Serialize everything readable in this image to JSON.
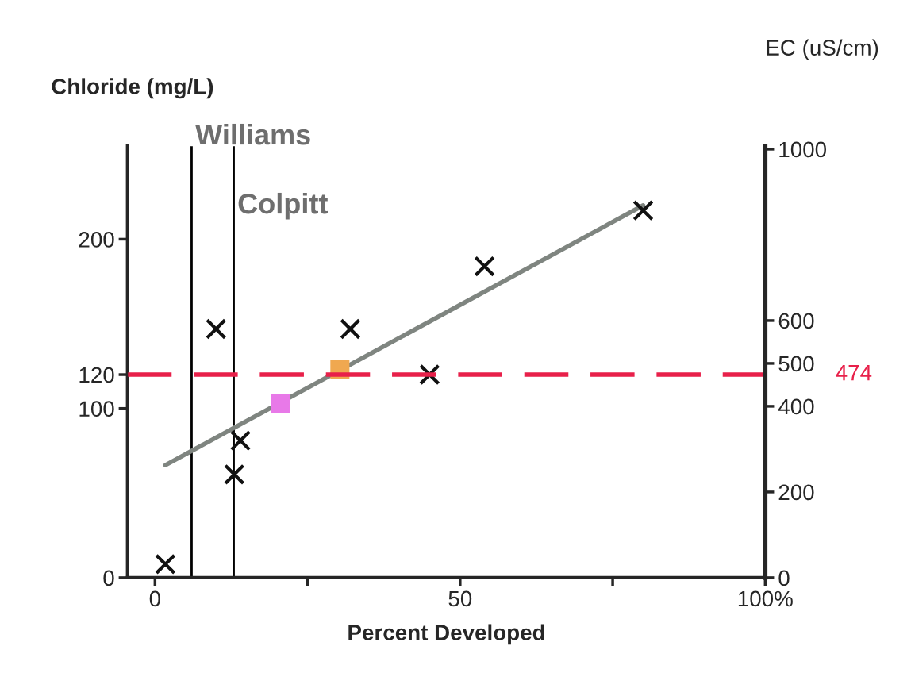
{
  "chart_data": {
    "type": "scatter",
    "xlabel": "Percent Developed",
    "ylabel": "Chloride (mg/L)",
    "y2label": "EC (uS/cm)",
    "xlim": [
      -4.5,
      100
    ],
    "xticks": [
      0,
      {
        "value": 25,
        "label": null
      },
      50,
      {
        "value": 75,
        "label": null
      },
      {
        "value": 100,
        "label": "100%"
      }
    ],
    "ylim": [
      0,
      255
    ],
    "yticks": [
      0,
      100,
      120,
      200
    ],
    "y2lim": [
      0,
      1007
    ],
    "y2ticks": [
      0,
      200,
      400,
      500,
      600,
      1000
    ],
    "grid": false,
    "series": [
      {
        "marker": "cross",
        "color": "#111111",
        "x": [
          1.7,
          10,
          32,
          54,
          80,
          45,
          14,
          13
        ],
        "values": [
          8,
          147,
          147,
          184,
          217,
          120,
          81,
          61
        ]
      },
      {
        "marker": "square",
        "color": "#e879e8",
        "x": [
          20.6
        ],
        "values": [
          103
        ]
      },
      {
        "marker": "square",
        "color": "#f0a850",
        "x": [
          30.3
        ],
        "values": [
          123
        ]
      },
      {
        "type": "line",
        "marker": "none",
        "line_style": "solid",
        "color": "#7f8580",
        "x": [
          1.7,
          80
        ],
        "values": [
          66.5,
          220
        ]
      }
    ],
    "ref_lines": [
      {
        "axis": "x",
        "value": 6.0,
        "label": "Williams",
        "color": "#000000",
        "line_style": "solid"
      },
      {
        "axis": "x",
        "value": 12.9,
        "label": "Colpitt",
        "color": "#000000",
        "line_style": "solid"
      },
      {
        "axis": "y2",
        "value": 474,
        "label": "474",
        "color": "#e8204a",
        "line_style": "dashed"
      }
    ]
  }
}
